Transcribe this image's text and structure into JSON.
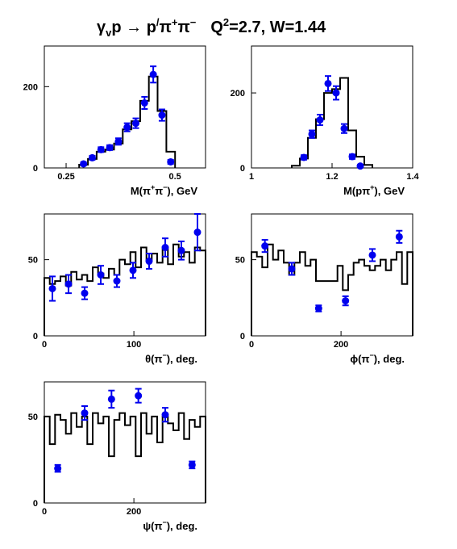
{
  "figure": {
    "title": {
      "gamma": "γ",
      "gamma_sub": "v",
      "proton": "p",
      "arrow": " → p",
      "prime": "/",
      "pi": "π",
      "plus": "+",
      "minus": "−",
      "q2_label": "Q",
      "q2_sup": "2",
      "q2_rest": "=2.7, W=1.44"
    },
    "style": {
      "histogram_color": "#000000",
      "point_color": "#0000ee"
    }
  },
  "chart_data": [
    {
      "type": "scatter",
      "xlabel": "M(π⁺π⁻), GeV",
      "xlabel_parts": {
        "pre": "M(π",
        "sup1": "+",
        "mid": "π",
        "sup2": "−",
        "post": "), GeV"
      },
      "xlim": [
        0.2,
        0.57
      ],
      "ylim": [
        0,
        300
      ],
      "xticks": [
        0.25,
        0.5
      ],
      "xtick_labels": [
        "0.25",
        "0.5"
      ],
      "yticks": [
        0,
        200
      ],
      "ytick_labels": [
        "0",
        "200"
      ],
      "histogram": {
        "edges": [
          0.28,
          0.3,
          0.32,
          0.34,
          0.36,
          0.38,
          0.4,
          0.42,
          0.44,
          0.46,
          0.48,
          0.5
        ],
        "values": [
          8,
          22,
          40,
          45,
          60,
          95,
          115,
          165,
          225,
          140,
          40
        ]
      },
      "points": {
        "x": [
          0.29,
          0.31,
          0.33,
          0.35,
          0.37,
          0.39,
          0.41,
          0.43,
          0.45,
          0.47,
          0.49
        ],
        "y": [
          10,
          25,
          45,
          50,
          65,
          100,
          110,
          160,
          230,
          130,
          15
        ],
        "err": [
          4,
          5,
          6,
          6,
          8,
          10,
          12,
          15,
          20,
          14,
          5
        ]
      }
    },
    {
      "type": "scatter",
      "xlabel": "M(pπ⁺), GeV",
      "xlabel_parts": {
        "pre": "M(pπ",
        "sup1": "+",
        "post": "), GeV"
      },
      "xlim": [
        1.0,
        1.4
      ],
      "ylim": [
        0,
        325
      ],
      "xticks": [
        1.0,
        1.2,
        1.4
      ],
      "xtick_labels": [
        "1",
        "1.2",
        "1.4"
      ],
      "yticks": [
        0,
        200
      ],
      "ytick_labels": [
        "0",
        "200"
      ],
      "histogram": {
        "edges": [
          1.1,
          1.12,
          1.14,
          1.16,
          1.18,
          1.2,
          1.22,
          1.24,
          1.26,
          1.28,
          1.3
        ],
        "values": [
          6,
          25,
          80,
          130,
          200,
          210,
          240,
          100,
          30,
          8
        ]
      },
      "points": {
        "x": [
          1.13,
          1.15,
          1.17,
          1.19,
          1.21,
          1.23,
          1.25,
          1.27
        ],
        "y": [
          28,
          90,
          128,
          225,
          200,
          105,
          30,
          5
        ],
        "err": [
          6,
          10,
          14,
          20,
          18,
          12,
          6,
          3
        ]
      }
    },
    {
      "type": "scatter",
      "xlabel": "θ(π⁻), deg.",
      "xlabel_parts": {
        "pre": "θ(π",
        "sup1": "−",
        "post": "), deg."
      },
      "xlim": [
        0,
        180
      ],
      "ylim": [
        0,
        80
      ],
      "xticks": [
        0,
        100
      ],
      "xtick_labels": [
        "0",
        "100"
      ],
      "yticks": [
        0,
        50
      ],
      "ytick_labels": [
        "0",
        "50"
      ],
      "histogram": {
        "edges": [
          0,
          6,
          12,
          18,
          24,
          30,
          36,
          42,
          48,
          54,
          60,
          66,
          72,
          78,
          84,
          90,
          96,
          102,
          108,
          114,
          120,
          126,
          132,
          138,
          144,
          150,
          156,
          162,
          168,
          174,
          180
        ],
        "values": [
          38,
          34,
          36,
          39,
          33,
          42,
          37,
          40,
          36,
          45,
          41,
          38,
          44,
          40,
          50,
          47,
          55,
          45,
          58,
          50,
          54,
          48,
          57,
          47,
          60,
          52,
          55,
          48,
          58,
          56
        ]
      },
      "points": {
        "x": [
          9,
          27,
          45,
          63,
          81,
          99,
          117,
          135,
          153,
          171
        ],
        "y": [
          31,
          34,
          28,
          40,
          36,
          43,
          49,
          58,
          56,
          68
        ],
        "err": [
          8,
          6,
          4,
          6,
          4,
          5,
          5,
          6,
          6,
          12
        ]
      }
    },
    {
      "type": "scatter",
      "xlabel": "ϕ(π⁻), deg.",
      "xlabel_parts": {
        "pre": "ϕ(π",
        "sup1": "−",
        "post": "), deg."
      },
      "xlim": [
        0,
        360
      ],
      "ylim": [
        0,
        80
      ],
      "xticks": [
        0,
        200
      ],
      "xtick_labels": [
        "0",
        "200"
      ],
      "yticks": [
        0,
        50
      ],
      "ytick_labels": [
        "0",
        "50"
      ],
      "histogram": {
        "edges": [
          0,
          12,
          24,
          36,
          48,
          60,
          72,
          84,
          96,
          108,
          120,
          132,
          144,
          156,
          168,
          180,
          192,
          204,
          216,
          228,
          240,
          252,
          264,
          276,
          288,
          300,
          312,
          324,
          336,
          348,
          360
        ],
        "values": [
          55,
          52,
          45,
          60,
          50,
          56,
          48,
          40,
          48,
          55,
          46,
          50,
          36,
          36,
          36,
          36,
          46,
          30,
          40,
          48,
          50,
          46,
          43,
          46,
          50,
          43,
          50,
          55,
          34,
          55
        ]
      },
      "points": {
        "x": [
          30,
          90,
          150,
          210,
          270,
          330
        ],
        "y": [
          59,
          44,
          18,
          23,
          53,
          65
        ],
        "err": [
          4,
          4,
          2,
          3,
          4,
          4
        ]
      }
    },
    {
      "type": "scatter",
      "xlabel": "ψ(π⁻), deg.",
      "xlabel_parts": {
        "pre": "ψ(π",
        "sup1": "−",
        "post": "), deg."
      },
      "xlim": [
        0,
        360
      ],
      "ylim": [
        0,
        70
      ],
      "xticks": [
        0,
        200
      ],
      "xtick_labels": [
        "0",
        "200"
      ],
      "yticks": [
        0,
        50
      ],
      "ytick_labels": [
        "0",
        "50"
      ],
      "histogram": {
        "edges": [
          0,
          12,
          24,
          36,
          48,
          60,
          72,
          84,
          96,
          108,
          120,
          132,
          144,
          156,
          168,
          180,
          192,
          204,
          216,
          228,
          240,
          252,
          264,
          276,
          288,
          300,
          312,
          324,
          336,
          348,
          360
        ],
        "values": [
          50,
          34,
          51,
          48,
          40,
          52,
          44,
          50,
          34,
          52,
          46,
          50,
          27,
          48,
          52,
          45,
          50,
          27,
          52,
          40,
          50,
          35,
          50,
          46,
          42,
          52,
          37,
          48,
          44,
          50
        ]
      },
      "points": {
        "x": [
          30,
          90,
          150,
          210,
          270,
          330
        ],
        "y": [
          20,
          52,
          60,
          62,
          51,
          22
        ],
        "err": [
          2,
          4,
          5,
          4,
          4,
          2
        ]
      }
    }
  ]
}
